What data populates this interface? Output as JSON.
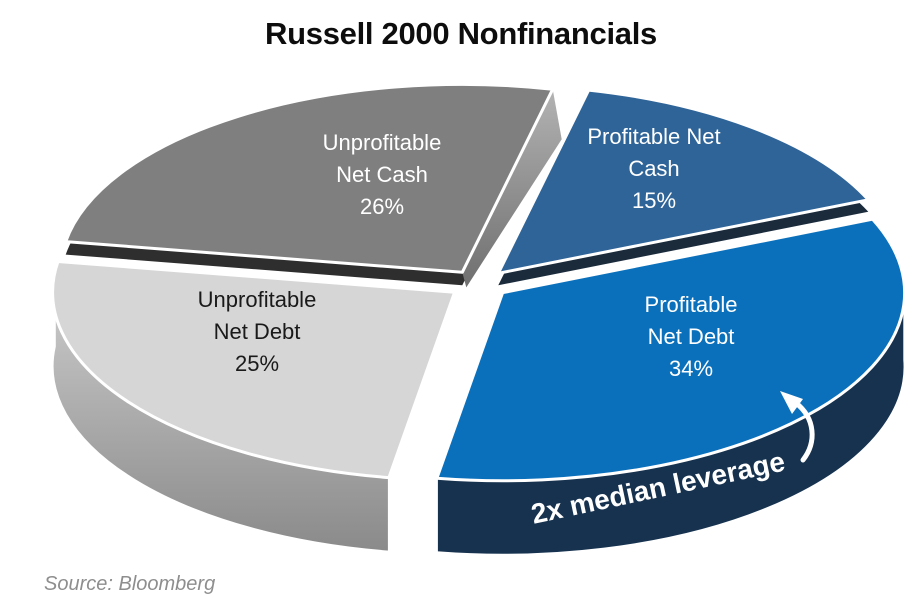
{
  "title": "Russell 2000 Nonfinancials",
  "source_note": "Source: Bloomberg",
  "chart_data": {
    "type": "pie",
    "style": "3d-exploded",
    "title": "Russell 2000 Nonfinancials",
    "unit": "percent",
    "total": 100,
    "start_angle_deg": 13,
    "legend": "none",
    "annotation": {
      "text": "2x median leverage",
      "target_slice": "Profitable Net Debt"
    },
    "slices": [
      {
        "label": "Profitable Net Cash",
        "value": 15,
        "label_lines": [
          "Profitable Net",
          "Cash",
          "15%"
        ],
        "color": "#2F6498",
        "edge_color": "#1B2B3C",
        "text_color": "#FFFFFF"
      },
      {
        "label": "Profitable Net Debt",
        "value": 34,
        "label_lines": [
          "Profitable",
          "Net Debt",
          "34%"
        ],
        "color": "#0B70BC",
        "edge_color": "#16324F",
        "text_color": "#FFFFFF"
      },
      {
        "label": "Unprofitable Net Debt",
        "value": 25,
        "label_lines": [
          "Unprofitable",
          "Net Debt",
          "25%"
        ],
        "color": "#D6D6D6",
        "edge_color": "#9A9A9A",
        "text_color": "#1A1A1A"
      },
      {
        "label": "Unprofitable Net Cash",
        "value": 26,
        "label_lines": [
          "Unprofitable",
          "Net Cash",
          "26%"
        ],
        "color": "#7F7F7F",
        "edge_color": "#2E2E2E",
        "text_color": "#FFFFFF"
      }
    ]
  }
}
